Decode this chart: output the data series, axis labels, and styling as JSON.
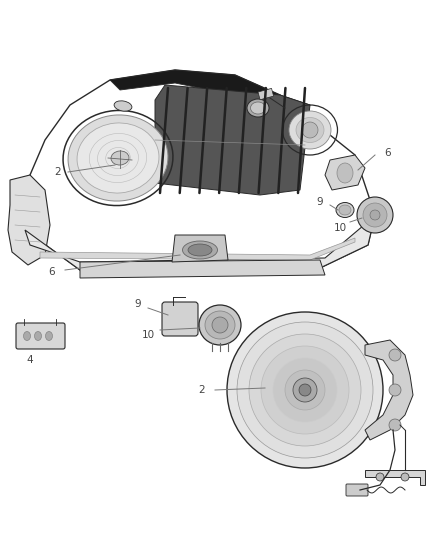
{
  "bg_color": "#ffffff",
  "fig_width": 4.38,
  "fig_height": 5.33,
  "dpi": 100,
  "line_color": "#2a2a2a",
  "label_color": "#444444",
  "callout_color": "#777777",
  "font_size": 7.5,
  "grille_dark": "#1a1a1a",
  "grille_mid": "#888888",
  "part_fill": "#f0f0f0",
  "part_edge": "#333333",
  "shadow_fill": "#cccccc"
}
